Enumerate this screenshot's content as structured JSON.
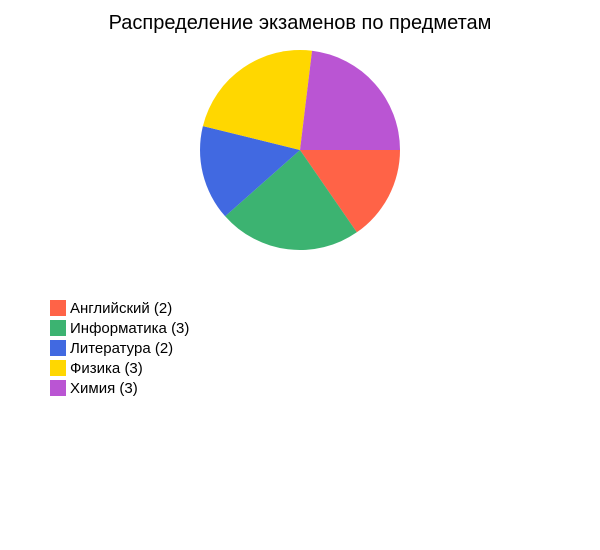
{
  "chart_data": {
    "type": "pie",
    "title": "Распределение экзаменов по предметам",
    "start_angle_deg": 0,
    "direction": "clockwise",
    "legend_position": "bottom-left",
    "categories": [
      "Английский",
      "Информатика",
      "Литература",
      "Физика",
      "Химия"
    ],
    "values": [
      2,
      3,
      2,
      3,
      3
    ],
    "legend_labels": [
      "Английский (2)",
      "Информатика (3)",
      "Литература (2)",
      "Физика (3)",
      "Химия (3)"
    ],
    "colors": [
      "#ff6347",
      "#3cb371",
      "#4169e1",
      "#ffd700",
      "#ba55d3"
    ]
  }
}
